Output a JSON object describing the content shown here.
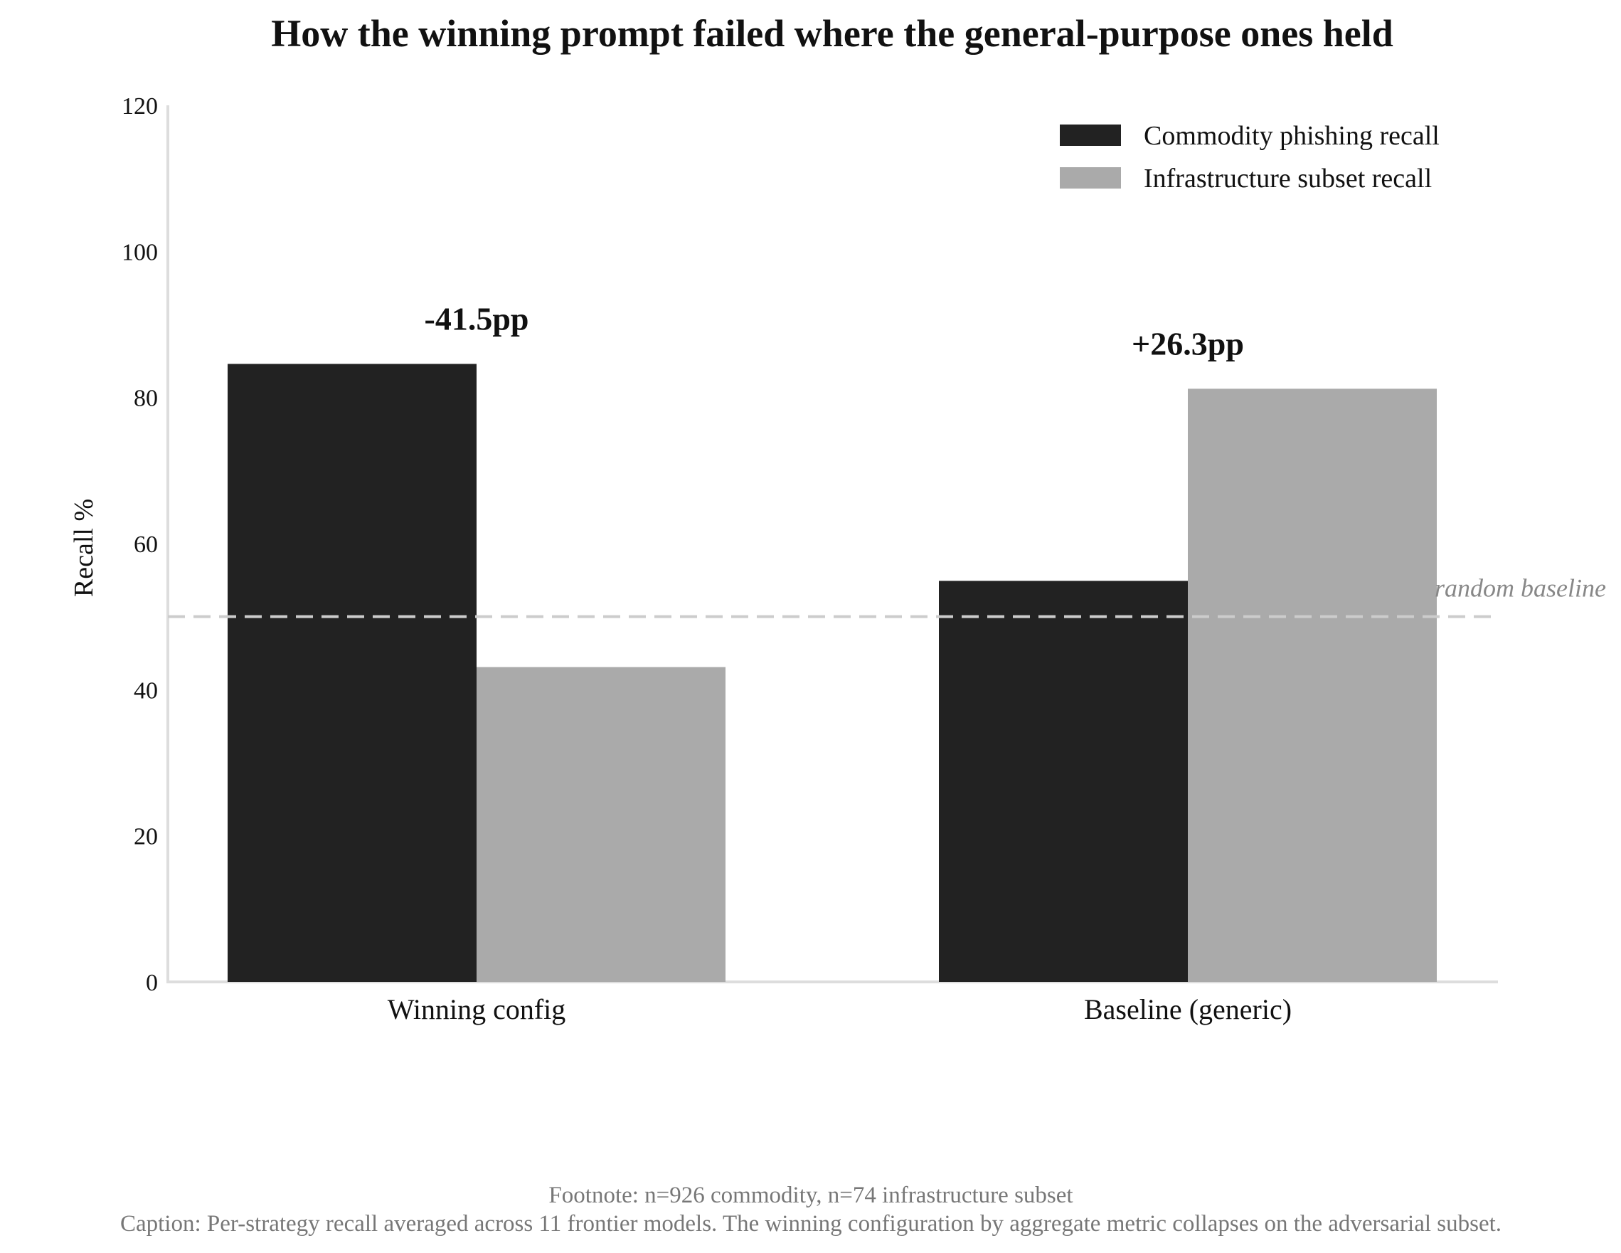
{
  "chart_data": {
    "type": "bar",
    "title": "How the winning prompt failed where the general-purpose ones held",
    "ylabel": "Recall %",
    "xlabel": "",
    "categories": [
      "Winning config",
      "Baseline (generic)"
    ],
    "series": [
      {
        "name": "Commodity phishing recall",
        "values": [
          84.6,
          54.9
        ],
        "color": "#222222"
      },
      {
        "name": "Infrastructure subset recall",
        "values": [
          43.1,
          81.2
        ],
        "color": "#aaaaaa"
      }
    ],
    "ylim": [
      0,
      120
    ],
    "yticks": [
      0,
      20,
      40,
      60,
      80,
      100,
      120
    ],
    "annotations": [
      "-41.5pp",
      "+26.3pp"
    ],
    "reference_line": {
      "value": 50,
      "label": "random baseline",
      "color": "#cccccc"
    },
    "legend_position": "top-right",
    "grid": false
  },
  "footnote": "Footnote: n=926 commodity, n=74 infrastructure subset",
  "caption": "Caption: Per-strategy recall averaged across 11 frontier models. The winning configuration by aggregate metric collapses on the adversarial subset."
}
